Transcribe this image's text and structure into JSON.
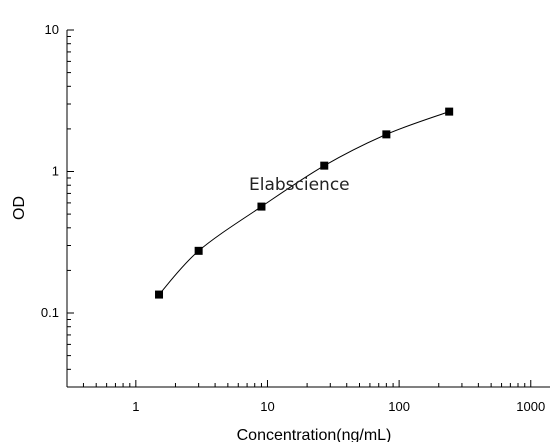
{
  "chart_data": {
    "type": "scatter",
    "xlabel": "Concentration(ng/mL)",
    "ylabel": "OD",
    "x_scale": "log",
    "y_scale": "log",
    "xlim": [
      0.3,
      1400
    ],
    "ylim": [
      0.03,
      10
    ],
    "x_ticks": [
      {
        "value": 1,
        "label": "1"
      },
      {
        "value": 10,
        "label": "10"
      },
      {
        "value": 100,
        "label": "100"
      },
      {
        "value": 1000,
        "label": "1000"
      }
    ],
    "y_ticks": [
      {
        "value": 0.1,
        "label": "0.1"
      },
      {
        "value": 1,
        "label": "1"
      },
      {
        "value": 10,
        "label": "10"
      }
    ],
    "grid": false,
    "legend": "none",
    "marker": "square",
    "connect_points": true,
    "series": [
      {
        "x": [
          1.5,
          3,
          9,
          27,
          80,
          240
        ],
        "y": [
          0.135,
          0.275,
          0.565,
          1.1,
          1.83,
          2.65
        ]
      }
    ],
    "watermark": "Elabscience",
    "colors": {
      "marker": "#000000",
      "line": "#000000",
      "axis": "#000000"
    }
  }
}
